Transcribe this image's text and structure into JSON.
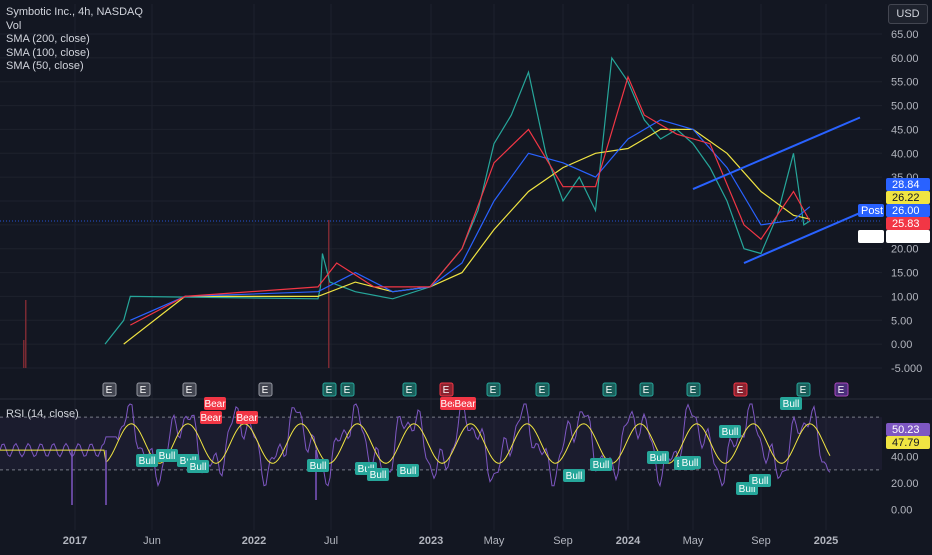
{
  "header": {
    "symbol_line": "Symbotic Inc., 4h, NASDAQ",
    "indicators": [
      "Vol",
      "SMA (200, close)",
      "SMA (100, close)",
      "SMA (50, close)"
    ],
    "currency_button": "USD"
  },
  "chart_data": [
    {
      "type": "line",
      "title": "Symbotic Inc., 4h, NASDAQ",
      "y_axis_labels": [
        "65.00",
        "60.00",
        "55.00",
        "50.00",
        "45.00",
        "40.00",
        "35.00",
        "30.00",
        "25.00",
        "20.00",
        "15.00",
        "10.00",
        "5.00",
        "0.00",
        "-5.000"
      ],
      "ylim": [
        -5,
        65
      ],
      "x_axis_labels": [
        "2017",
        "Jun",
        "2022",
        "Jul",
        "2023",
        "May",
        "Sep",
        "2024",
        "May",
        "Sep",
        "2025"
      ],
      "series": [
        {
          "name": "Price",
          "color": "#26a69a",
          "points": [
            [
              "2021-06",
              0
            ],
            [
              "2021-06-15",
              5
            ],
            [
              "2021-06-20",
              10
            ],
            [
              "2022-07",
              9.5
            ],
            [
              "2022-07-05",
              12
            ],
            [
              "2022-07-08",
              19
            ],
            [
              "2022-07-20",
              13
            ],
            [
              "2022-09",
              11
            ],
            [
              "2022-11",
              9.5
            ],
            [
              "2023-01",
              12
            ],
            [
              "2023-03",
              20
            ],
            [
              "2023-04",
              28
            ],
            [
              "2023-05",
              42
            ],
            [
              "2023-06",
              48
            ],
            [
              "2023-07",
              57
            ],
            [
              "2023-08",
              40
            ],
            [
              "2023-09",
              30
            ],
            [
              "2023-10",
              35
            ],
            [
              "2023-11",
              28
            ],
            [
              "2023-12",
              60
            ],
            [
              "2024-01",
              55
            ],
            [
              "2024-02",
              47
            ],
            [
              "2024-03",
              43
            ],
            [
              "2024-04",
              45
            ],
            [
              "2024-05",
              42
            ],
            [
              "2024-06",
              37
            ],
            [
              "2024-07",
              30
            ],
            [
              "2024-08",
              20
            ],
            [
              "2024-09",
              19
            ],
            [
              "2024-10",
              27
            ],
            [
              "2024-11",
              40
            ],
            [
              "2024-11-20",
              25
            ],
            [
              "2024-12",
              25.8
            ]
          ]
        },
        {
          "name": "SMA (200, close)",
          "color": "#f0e442",
          "points": [
            [
              "2021-06-15",
              0
            ],
            [
              "2021-08",
              10
            ],
            [
              "2022-07",
              10
            ],
            [
              "2022-09",
              13
            ],
            [
              "2022-11",
              11
            ],
            [
              "2023-01",
              12
            ],
            [
              "2023-03",
              15
            ],
            [
              "2023-05",
              24
            ],
            [
              "2023-07",
              32
            ],
            [
              "2023-09",
              37
            ],
            [
              "2023-11",
              40
            ],
            [
              "2024-01",
              41
            ],
            [
              "2024-03",
              45
            ],
            [
              "2024-05",
              45
            ],
            [
              "2024-07",
              40
            ],
            [
              "2024-09",
              32
            ],
            [
              "2024-11",
              27
            ],
            [
              "2024-12",
              26.2
            ]
          ]
        },
        {
          "name": "SMA (100, close)",
          "color": "#2962ff",
          "points": [
            [
              "2021-06-20",
              5
            ],
            [
              "2021-08",
              10
            ],
            [
              "2022-07",
              11
            ],
            [
              "2022-09",
              15
            ],
            [
              "2022-11",
              11
            ],
            [
              "2023-01",
              12
            ],
            [
              "2023-03",
              17
            ],
            [
              "2023-05",
              30
            ],
            [
              "2023-07",
              40
            ],
            [
              "2023-09",
              38
            ],
            [
              "2023-11",
              35
            ],
            [
              "2024-01",
              43
            ],
            [
              "2024-03",
              47
            ],
            [
              "2024-05",
              45
            ],
            [
              "2024-07",
              37
            ],
            [
              "2024-09",
              25
            ],
            [
              "2024-11",
              26
            ],
            [
              "2024-12",
              28.8
            ]
          ]
        },
        {
          "name": "SMA (50, close)",
          "color": "#f23645",
          "points": [
            [
              "2021-06-20",
              4
            ],
            [
              "2021-08",
              10
            ],
            [
              "2022-07",
              12
            ],
            [
              "2022-08",
              17
            ],
            [
              "2022-10",
              12
            ],
            [
              "2023-01",
              12
            ],
            [
              "2023-03",
              20
            ],
            [
              "2023-05",
              38
            ],
            [
              "2023-07",
              45
            ],
            [
              "2023-09",
              33
            ],
            [
              "2023-11",
              33
            ],
            [
              "2024-01",
              56
            ],
            [
              "2024-02",
              48
            ],
            [
              "2024-04",
              44
            ],
            [
              "2024-06",
              42
            ],
            [
              "2024-08",
              25
            ],
            [
              "2024-09",
              22
            ],
            [
              "2024-11",
              32
            ],
            [
              "2024-12",
              25.8
            ]
          ]
        }
      ],
      "trendlines": [
        {
          "color": "#2962ff",
          "from": [
            "2024-05",
            32.5
          ],
          "to": [
            "2025-03",
            47.5
          ]
        },
        {
          "color": "#2962ff",
          "from": [
            "2024-08",
            17
          ],
          "to": [
            "2025-03",
            27.5
          ]
        }
      ],
      "price_tags": [
        {
          "label": "",
          "value": "28.84",
          "color": "#2962ff",
          "text_color": "#ffffff"
        },
        {
          "label": "",
          "value": "26.22",
          "color": "#f0e442",
          "text_color": "#131722"
        },
        {
          "label": "Post",
          "value": "26.00",
          "color": "#2962ff",
          "text_color": "#ffffff"
        },
        {
          "label": "",
          "value": "25.83",
          "color": "#f23645",
          "text_color": "#ffffff"
        },
        {
          "label": "",
          "value": "",
          "color": "#ffffff",
          "text_color": "#131722"
        }
      ],
      "earnings_markers": [
        {
          "label": "E",
          "kind": "past"
        },
        {
          "label": "E",
          "kind": "past"
        },
        {
          "label": "E",
          "kind": "past"
        },
        {
          "label": "E",
          "kind": "past"
        },
        {
          "label": "E",
          "kind": "beat"
        },
        {
          "label": "E",
          "kind": "beat"
        },
        {
          "label": "E",
          "kind": "beat"
        },
        {
          "label": "E",
          "kind": "miss"
        },
        {
          "label": "E",
          "kind": "beat"
        },
        {
          "label": "E",
          "kind": "beat"
        },
        {
          "label": "E",
          "kind": "beat"
        },
        {
          "label": "E",
          "kind": "beat"
        },
        {
          "label": "E",
          "kind": "beat"
        },
        {
          "label": "E",
          "kind": "miss"
        },
        {
          "label": "E",
          "kind": "beat"
        },
        {
          "label": "E",
          "kind": "upcoming"
        }
      ]
    },
    {
      "type": "line",
      "title": "RSI (14, close)",
      "y_axis_labels": [
        "60.00",
        "40.00",
        "20.00",
        "0.00"
      ],
      "ylim": [
        -5,
        80
      ],
      "bands": [
        30,
        70
      ],
      "values_shown": [
        {
          "value": "50.23",
          "color": "#7e57c2",
          "text_color": "#ffffff"
        },
        {
          "value": "47.79",
          "color": "#f0e442",
          "text_color": "#131722"
        }
      ],
      "divergence_labels": [
        {
          "label": "Bear",
          "kind": "bear"
        },
        {
          "label": "Bear",
          "kind": "bear"
        },
        {
          "label": "Bear",
          "kind": "bear"
        },
        {
          "label": "Bear",
          "kind": "bear"
        },
        {
          "label": "Bear",
          "kind": "bear"
        },
        {
          "label": "Bull",
          "kind": "bull"
        },
        {
          "label": "Bull",
          "kind": "bull"
        },
        {
          "label": "Bull",
          "kind": "bull"
        },
        {
          "label": "Bull",
          "kind": "bull"
        },
        {
          "label": "Bull",
          "kind": "bull"
        },
        {
          "label": "Bull",
          "kind": "bull"
        },
        {
          "label": "Bull",
          "kind": "bull"
        },
        {
          "label": "Bull",
          "kind": "bull"
        },
        {
          "label": "Bull",
          "kind": "bull"
        },
        {
          "label": "Bull",
          "kind": "bull"
        },
        {
          "label": "Bull",
          "kind": "bull"
        },
        {
          "label": "Bull",
          "kind": "bull"
        },
        {
          "label": "Bull",
          "kind": "bull"
        },
        {
          "label": "Bull",
          "kind": "bull"
        },
        {
          "label": "Bull",
          "kind": "bull"
        },
        {
          "label": "Bull",
          "kind": "bull"
        },
        {
          "label": "Bull",
          "kind": "bull"
        }
      ]
    }
  ],
  "rsi_legend": "RSI (14, close)",
  "colors": {
    "background": "#131722",
    "grid": "#1e222d",
    "axis_text": "#b2b5be",
    "bull_label": "#26a69a",
    "bear_label": "#f23645"
  }
}
